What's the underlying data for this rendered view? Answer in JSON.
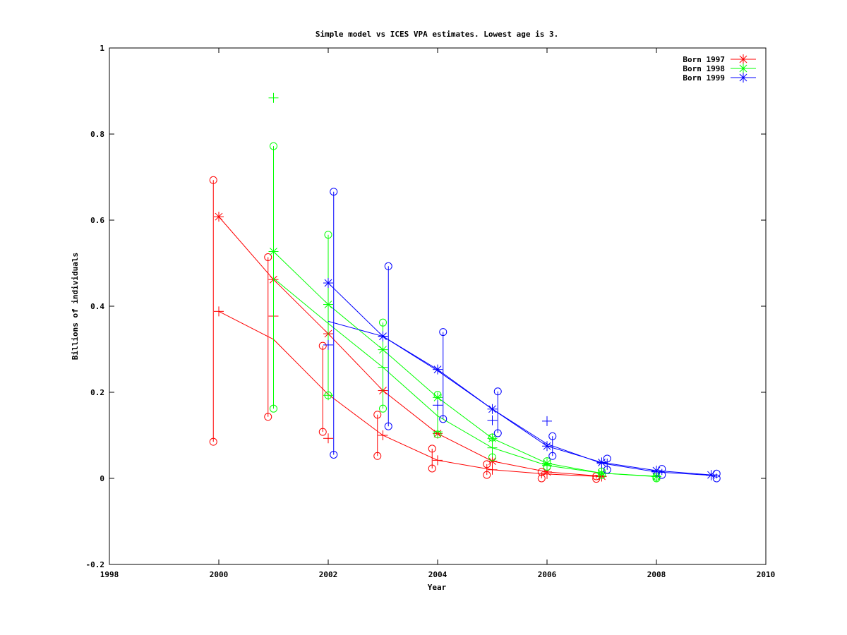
{
  "chart_data": {
    "type": "line",
    "title": "Simple model vs ICES VPA estimates. Lowest age is 3.",
    "xlabel": "Year",
    "ylabel": "Billions of individuals",
    "xlim": [
      1998,
      2010
    ],
    "ylim": [
      -0.2,
      1
    ],
    "xticks": [
      "1998",
      "2000",
      "2002",
      "2004",
      "2006",
      "2008",
      "2010"
    ],
    "yticks": [
      "-0.2",
      "0",
      "0.2",
      "0.4",
      "0.6",
      "0.8",
      "1"
    ],
    "grid": false,
    "legend_position": "top-right",
    "series": [
      {
        "name": "Born 1997",
        "color": "#ff0000",
        "estimate": [
          [
            2000,
            0.608
          ],
          [
            2001,
            0.462
          ],
          [
            2002,
            0.336
          ],
          [
            2003,
            0.204
          ],
          [
            2004,
            0.104
          ],
          [
            2005,
            0.04
          ],
          [
            2006,
            0.015
          ],
          [
            2007,
            0.005
          ]
        ],
        "model": [
          [
            2000,
            0.388
          ],
          [
            2001,
            0.323
          ],
          [
            2002,
            0.195
          ],
          [
            2003,
            0.1
          ],
          [
            2004,
            0.042
          ],
          [
            2005,
            0.02
          ],
          [
            2006,
            0.01
          ],
          [
            2007,
            0.004
          ]
        ],
        "plus_markers": [
          [
            2000,
            0.388
          ],
          [
            2001,
            0.377
          ],
          [
            2002,
            0.093
          ],
          [
            2003,
            0.1
          ],
          [
            2004,
            0.042
          ],
          [
            2005,
            0.02
          ],
          [
            2006,
            0.01
          ],
          [
            2007,
            0.004
          ]
        ],
        "interval_low": [
          [
            2000,
            0.085
          ],
          [
            2001,
            0.143
          ],
          [
            2002,
            0.108
          ],
          [
            2003,
            0.052
          ],
          [
            2004,
            0.023
          ],
          [
            2005,
            0.008
          ],
          [
            2006,
            0.0
          ],
          [
            2007,
            -0.001
          ]
        ],
        "interval_high": [
          [
            2000,
            0.693
          ],
          [
            2001,
            0.514
          ],
          [
            2002,
            0.308
          ],
          [
            2003,
            0.148
          ],
          [
            2004,
            0.069
          ],
          [
            2005,
            0.033
          ],
          [
            2006,
            0.015
          ],
          [
            2007,
            0.005
          ]
        ]
      },
      {
        "name": "Born 1998",
        "color": "#00ff00",
        "estimate": [
          [
            2001,
            0.527
          ],
          [
            2002,
            0.404
          ],
          [
            2003,
            0.299
          ],
          [
            2004,
            0.188
          ],
          [
            2005,
            0.093
          ],
          [
            2006,
            0.035
          ],
          [
            2007,
            0.012
          ],
          [
            2008,
            0.004
          ]
        ],
        "model": [
          [
            2001,
            0.465
          ],
          [
            2002,
            0.36
          ],
          [
            2003,
            0.258
          ],
          [
            2004,
            0.145
          ],
          [
            2005,
            0.071
          ],
          [
            2006,
            0.03
          ],
          [
            2007,
            0.012
          ],
          [
            2008,
            0.005
          ]
        ],
        "plus_markers": [
          [
            2001,
            0.884
          ],
          [
            2002,
            0.193
          ],
          [
            2003,
            0.258
          ],
          [
            2004,
            0.108
          ],
          [
            2005,
            0.071
          ],
          [
            2006,
            0.03
          ],
          [
            2007,
            0.012
          ],
          [
            2008,
            0.005
          ]
        ],
        "interval_low": [
          [
            2001,
            0.162
          ],
          [
            2002,
            0.193
          ],
          [
            2003,
            0.162
          ],
          [
            2004,
            0.102
          ],
          [
            2005,
            0.049
          ],
          [
            2006,
            0.027
          ],
          [
            2007,
            0.008
          ],
          [
            2008,
            0.0
          ]
        ],
        "interval_high": [
          [
            2001,
            0.772
          ],
          [
            2002,
            0.566
          ],
          [
            2003,
            0.362
          ],
          [
            2004,
            0.194
          ],
          [
            2005,
            0.095
          ],
          [
            2006,
            0.04
          ],
          [
            2007,
            0.016
          ],
          [
            2008,
            0.004
          ]
        ]
      },
      {
        "name": "Born 1999",
        "color": "#0000ff",
        "estimate": [
          [
            2002,
            0.454
          ],
          [
            2003,
            0.33
          ],
          [
            2004,
            0.253
          ],
          [
            2005,
            0.161
          ],
          [
            2006,
            0.075
          ],
          [
            2007,
            0.037
          ],
          [
            2008,
            0.018
          ],
          [
            2009,
            0.008
          ]
        ],
        "model": [
          [
            2002,
            0.365
          ],
          [
            2003,
            0.33
          ],
          [
            2004,
            0.25
          ],
          [
            2005,
            0.161
          ],
          [
            2006,
            0.08
          ],
          [
            2007,
            0.035
          ],
          [
            2008,
            0.015
          ],
          [
            2009,
            0.007
          ]
        ],
        "plus_markers": [
          [
            2002,
            0.31
          ],
          [
            2003,
            0.33
          ],
          [
            2004,
            0.17
          ],
          [
            2005,
            0.135
          ],
          [
            2006,
            0.133
          ],
          [
            2007,
            0.035
          ],
          [
            2008,
            0.015
          ],
          [
            2009,
            0.007
          ]
        ],
        "interval_low": [
          [
            2002,
            0.055
          ],
          [
            2003,
            0.121
          ],
          [
            2004,
            0.138
          ],
          [
            2005,
            0.105
          ],
          [
            2006,
            0.052
          ],
          [
            2007,
            0.02
          ],
          [
            2008,
            0.008
          ],
          [
            2009,
            0.0
          ]
        ],
        "interval_high": [
          [
            2002,
            0.666
          ],
          [
            2003,
            0.493
          ],
          [
            2004,
            0.34
          ],
          [
            2005,
            0.202
          ],
          [
            2006,
            0.098
          ],
          [
            2007,
            0.046
          ],
          [
            2008,
            0.022
          ],
          [
            2009,
            0.011
          ]
        ]
      }
    ]
  }
}
